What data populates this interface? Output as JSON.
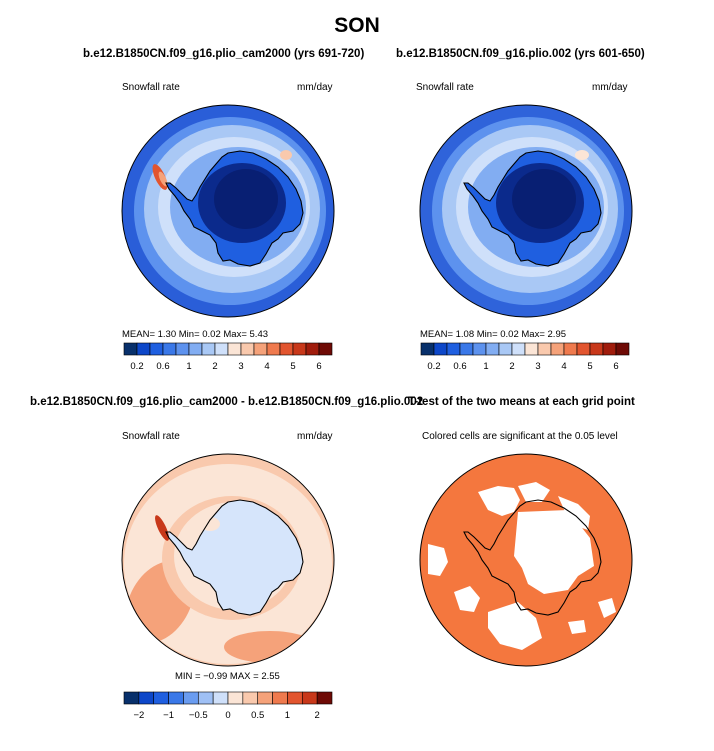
{
  "figure": {
    "title": "SON"
  },
  "panels": [
    {
      "title": "b.e12.B1850CN.f09_g16.plio_cam2000 (yrs 691-720)",
      "left_label": "Snowfall rate",
      "right_label": "mm/day",
      "stats": "MEAN=    1.30  Min=    0.02  Max=    5.43",
      "colorbar": {
        "colors": [
          "#08306b",
          "#0d47c9",
          "#1f5fe0",
          "#3a78e8",
          "#5d92ee",
          "#82adf2",
          "#a9c8f5",
          "#cfe0fa",
          "#fbe5d6",
          "#f9c9ad",
          "#f5a27a",
          "#ef7a4e",
          "#e2552f",
          "#c8381a",
          "#a01c0c",
          "#6e0a05"
        ],
        "tick_labels": [
          "0.2",
          "0.6",
          "1",
          "2",
          "3",
          "4",
          "5",
          "6"
        ]
      }
    },
    {
      "title": "b.e12.B1850CN.f09_g16.plio.002 (yrs 601-650)",
      "left_label": "Snowfall rate",
      "right_label": "mm/day",
      "stats": "MEAN=    1.08  Min=    0.02  Max=    2.95",
      "colorbar": {
        "colors": [
          "#08306b",
          "#0d47c9",
          "#1f5fe0",
          "#3a78e8",
          "#5d92ee",
          "#82adf2",
          "#a9c8f5",
          "#cfe0fa",
          "#fbe5d6",
          "#f9c9ad",
          "#f5a27a",
          "#ef7a4e",
          "#e2552f",
          "#c8381a",
          "#a01c0c",
          "#6e0a05"
        ],
        "tick_labels": [
          "0.2",
          "0.6",
          "1",
          "2",
          "3",
          "4",
          "5",
          "6"
        ]
      }
    },
    {
      "title": "b.e12.B1850CN.f09_g16.plio_cam2000 - b.e12.B1850CN.f09_g16.plio.002",
      "left_label": "Snowfall rate",
      "right_label": "mm/day",
      "stats": "MIN =  −0.99  MAX =    2.55",
      "colorbar": {
        "colors": [
          "#08306b",
          "#0d47c9",
          "#1f5fe0",
          "#3a78e8",
          "#6a9cf0",
          "#9fc0f5",
          "#cfe0fa",
          "#fbe5d6",
          "#f9c9ad",
          "#f5a27a",
          "#ef7a4e",
          "#e2552f",
          "#c8381a",
          "#6e0a05"
        ],
        "tick_labels": [
          "−2",
          "−1",
          "−0.5",
          "0",
          "0.5",
          "1",
          "2"
        ]
      }
    },
    {
      "title": "T-test of the two means at each grid point",
      "subtitle": "Colored cells are significant at the 0.05 level"
    }
  ],
  "colors": {
    "significant": "#f4773e",
    "ice_dark": "#08306b",
    "ocean_light": "#d3e2fa",
    "coast": "#000000"
  }
}
